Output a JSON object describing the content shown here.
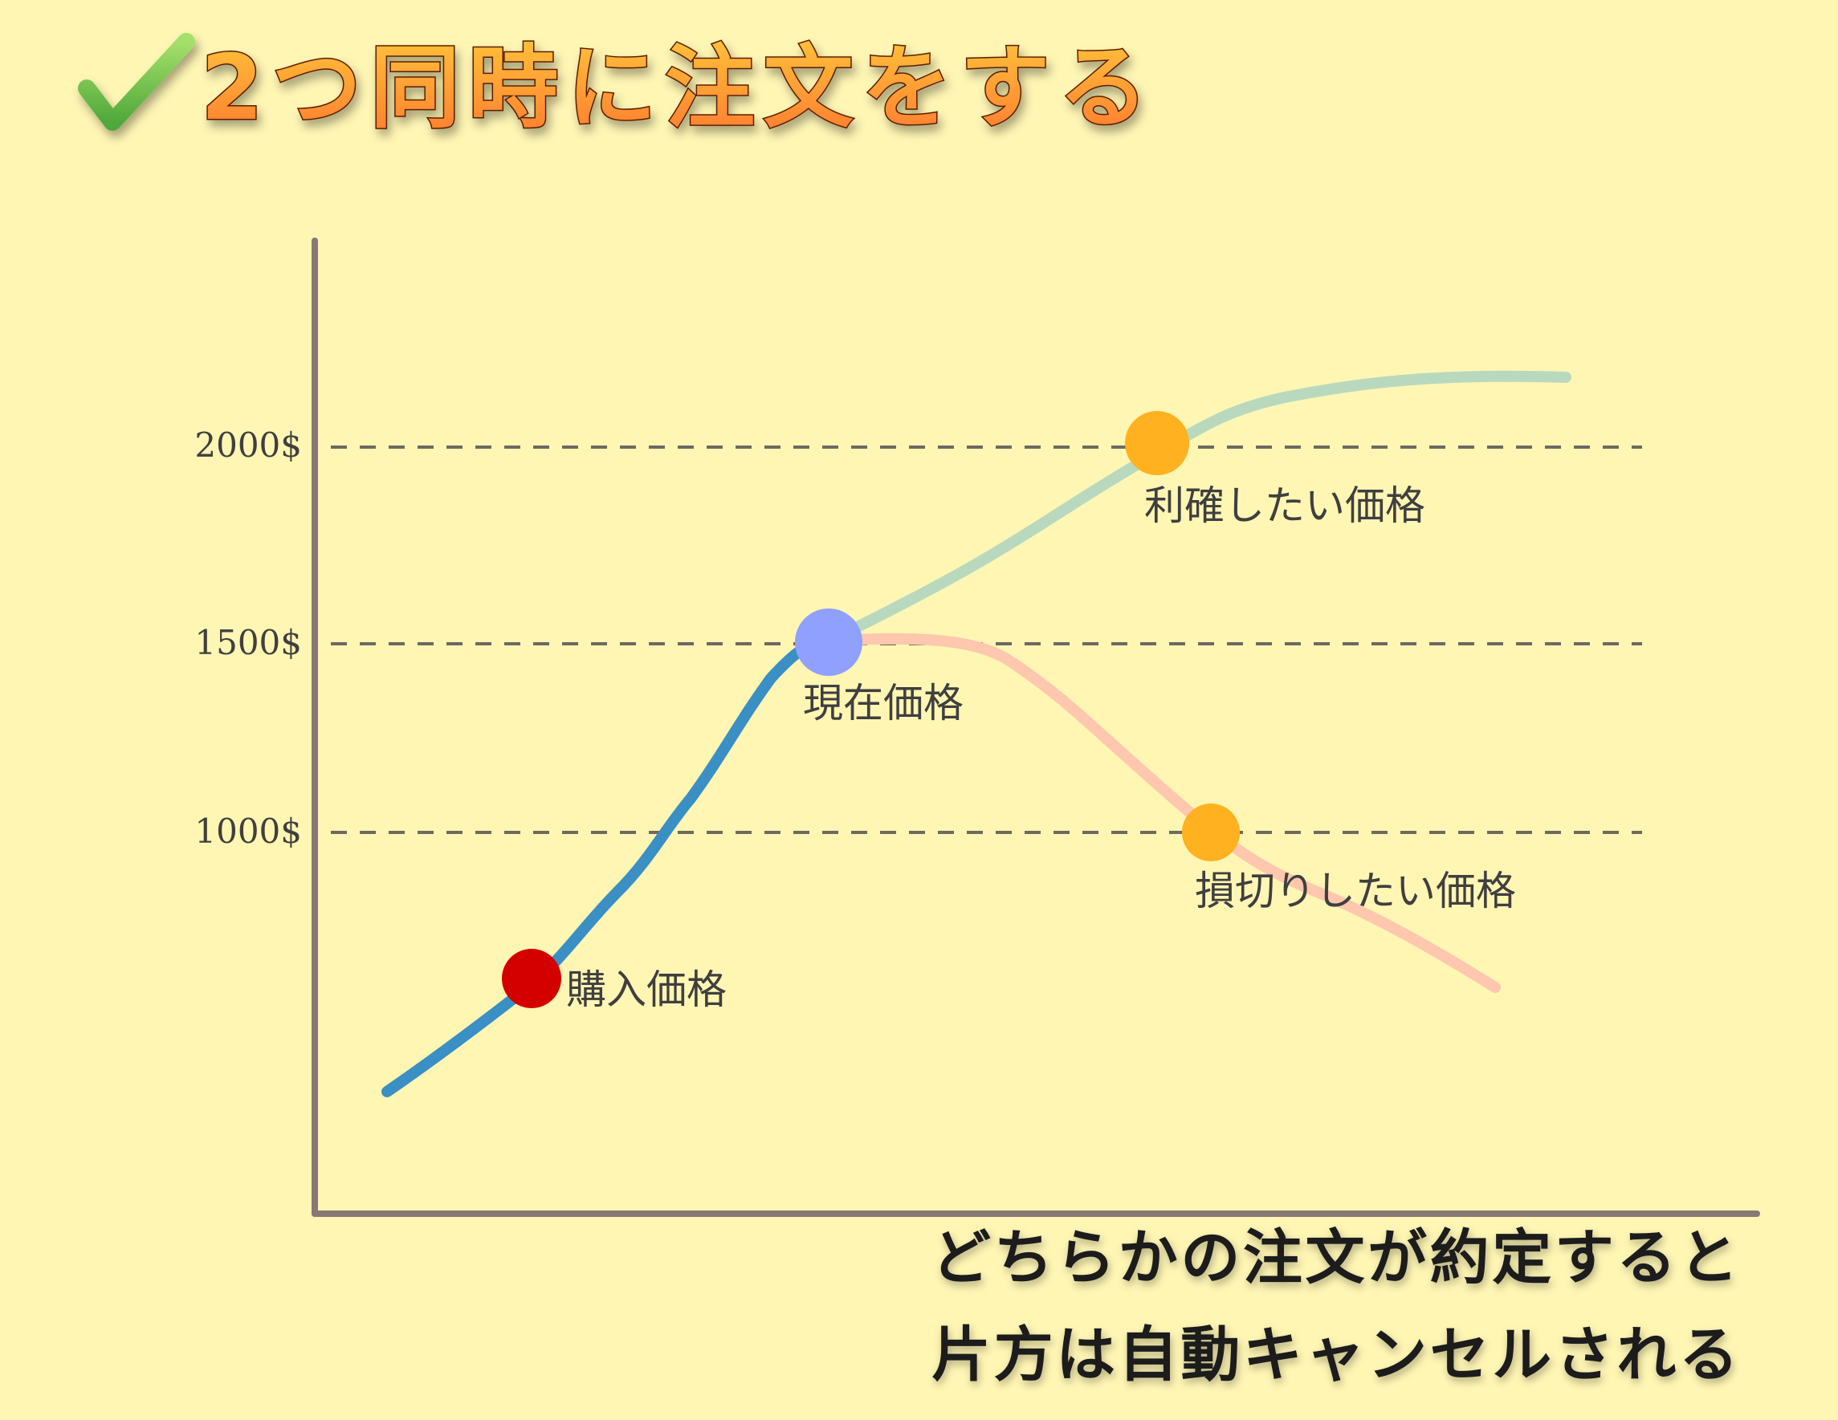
{
  "title": {
    "check_mark": "✓",
    "text": "2つ同時に注文をする"
  },
  "axis": {
    "ticks": [
      {
        "label": "2000$",
        "value": 2000
      },
      {
        "label": "1500$",
        "value": 1500
      },
      {
        "label": "1000$",
        "value": 1000
      }
    ]
  },
  "points": {
    "buy": {
      "label": "購入価格",
      "color": "#D40000"
    },
    "current": {
      "label": "現在価格",
      "color": "#8FA0FF"
    },
    "take_profit": {
      "label": "利確したい価格",
      "color": "#FFB11F"
    },
    "stop_loss": {
      "label": "損切りしたい価格",
      "color": "#FFB11F"
    }
  },
  "lines": {
    "history_color": "#3A8FC4",
    "up_color": "#B9D9BF",
    "down_color": "#FFC7AE"
  },
  "caption": {
    "line1": "どちらかの注文が約定すると",
    "line2": "片方は自動キャンセルされる"
  }
}
